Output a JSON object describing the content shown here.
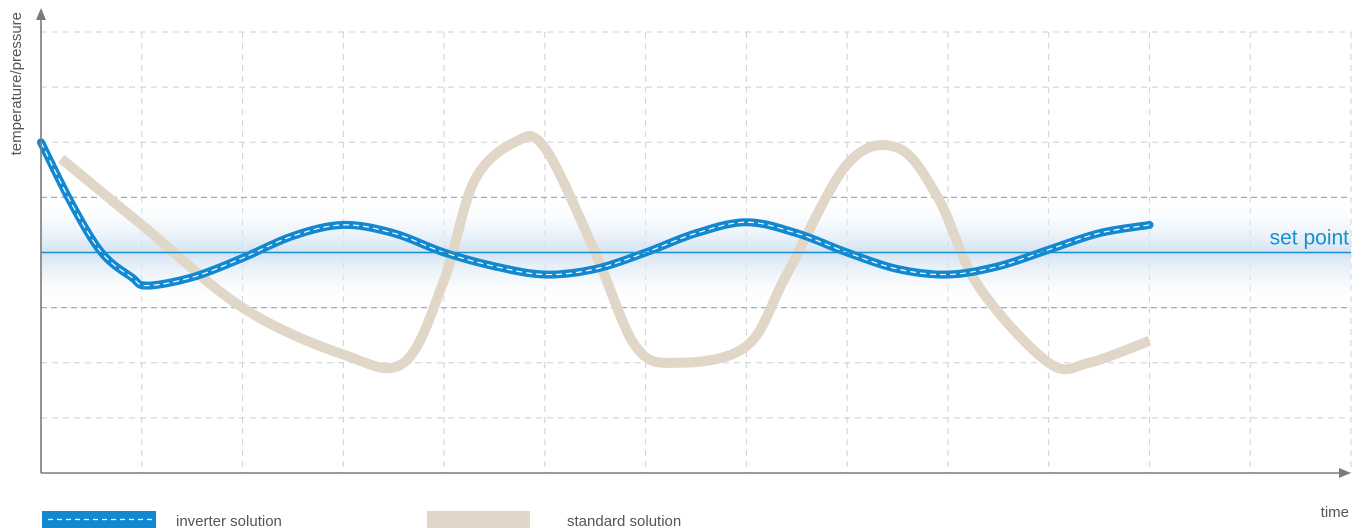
{
  "colors": {
    "inverter": "#1188d0",
    "inverter_dash": "#ffffff",
    "standard": "#e0d7c9",
    "setpoint": "#1b8fd0",
    "band_edge": "#7fb6de",
    "grid": "#d0d0d0",
    "axis": "#7a7a7a",
    "text": "#555555"
  },
  "chart_data": {
    "type": "line",
    "title": "",
    "xlabel": "time",
    "ylabel": "temperature/pressure",
    "xlim": [
      0,
      13
    ],
    "ylim": [
      0,
      8
    ],
    "grid": true,
    "legend_placement": "bottom-left",
    "setpoint": {
      "label": "set point",
      "value": 4.0
    },
    "tolerance_band": [
      3.0,
      5.0
    ],
    "series": [
      {
        "name": "inverter solution",
        "style": "band-dashed",
        "x": [
          0,
          0.3,
          0.6,
          0.9,
          1.05,
          1.5,
          2.0,
          2.5,
          3.0,
          3.5,
          4.0,
          4.5,
          5.0,
          5.5,
          6.0,
          6.5,
          7.0,
          7.5,
          8.0,
          8.5,
          9.0,
          9.5,
          10.0,
          10.5,
          11.0
        ],
        "y": [
          6.0,
          4.9,
          4.0,
          3.55,
          3.4,
          3.55,
          3.9,
          4.3,
          4.5,
          4.35,
          4.0,
          3.75,
          3.6,
          3.7,
          4.0,
          4.35,
          4.55,
          4.35,
          4.0,
          3.7,
          3.6,
          3.75,
          4.05,
          4.35,
          4.5
        ]
      },
      {
        "name": "standard solution",
        "style": "band",
        "x": [
          0.2,
          1.0,
          2.0,
          3.0,
          3.6,
          4.0,
          4.3,
          4.7,
          5.0,
          5.5,
          5.9,
          6.3,
          7.0,
          7.4,
          8.0,
          8.5,
          8.9,
          9.3,
          10.0,
          10.4,
          11.0
        ],
        "y": [
          5.7,
          4.5,
          3.0,
          2.15,
          2.0,
          3.5,
          5.3,
          6.0,
          5.9,
          4.0,
          2.3,
          2.0,
          2.3,
          3.6,
          5.6,
          5.9,
          5.0,
          3.4,
          2.0,
          2.0,
          2.4
        ]
      }
    ]
  }
}
